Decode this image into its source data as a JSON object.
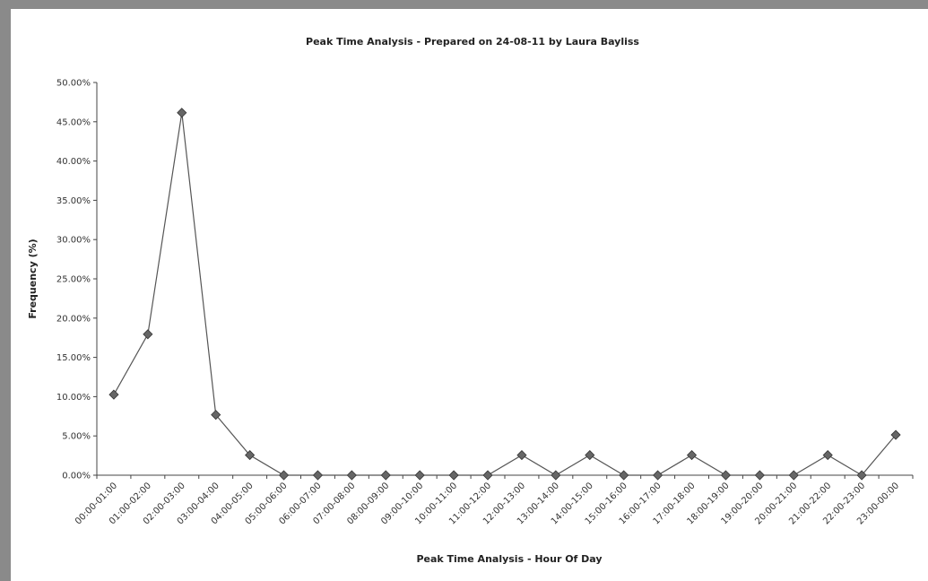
{
  "chart_data": {
    "type": "line",
    "title": "Peak Time Analysis - Prepared on 24-08-11 by Laura Bayliss",
    "xlabel": "Peak Time Analysis - Hour Of Day",
    "ylabel": "Frequency (%)",
    "ylim": [
      0,
      50
    ],
    "y_ticks": [
      "0.00%",
      "5.00%",
      "10.00%",
      "15.00%",
      "20.00%",
      "25.00%",
      "30.00%",
      "35.00%",
      "40.00%",
      "45.00%",
      "50.00%"
    ],
    "categories": [
      "00:00-01:00",
      "01:00-02:00",
      "02:00-03:00",
      "03:00-04:00",
      "04:00-05:00",
      "05:00-06:00",
      "06:00-07:00",
      "07:00-08:00",
      "08:00-09:00",
      "09:00-10:00",
      "10:00-11:00",
      "11:00-12:00",
      "12:00-13:00",
      "13:00-14:00",
      "14:00-15:00",
      "15:00-16:00",
      "16:00-17:00",
      "17:00-18:00",
      "18:00-19:00",
      "19:00-20:00",
      "20:00-21:00",
      "21:00-22:00",
      "22:00-23:00",
      "23:00-00:00"
    ],
    "series": [
      {
        "values": [
          10.26,
          17.95,
          46.15,
          7.69,
          2.56,
          0,
          0,
          0,
          0,
          0,
          0,
          0,
          2.56,
          0,
          2.56,
          0,
          0,
          2.56,
          0,
          0,
          0,
          2.56,
          0,
          5.13
        ]
      }
    ],
    "grid": false,
    "marker": "diamond",
    "colors": {
      "line": "#555555",
      "marker": "#666666",
      "axis": "#444444"
    }
  }
}
